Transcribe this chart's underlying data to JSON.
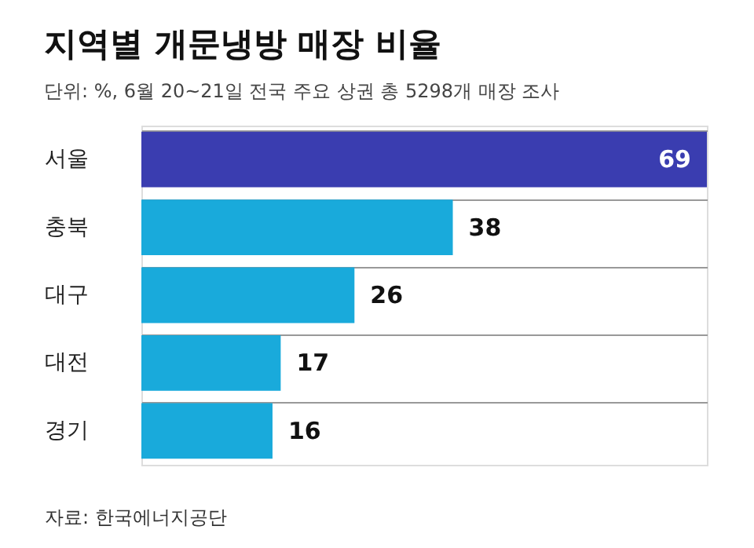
{
  "chart_data": {
    "type": "bar",
    "orientation": "horizontal",
    "title": "지역별 개문냉방 매장 비율",
    "subtitle": "단위: %, 6월 20~21일 전국 주요 상권 총 5298개 매장 조사",
    "categories": [
      "서울",
      "충북",
      "대구",
      "대전",
      "경기"
    ],
    "values": [
      69,
      38,
      26,
      17,
      16
    ],
    "colors": [
      "#3a3db0",
      "#19aadb",
      "#19aadb",
      "#19aadb",
      "#19aadb"
    ],
    "data_labels": true,
    "grid": "y",
    "annotations": [
      "자료: 한국에너지공단"
    ]
  }
}
